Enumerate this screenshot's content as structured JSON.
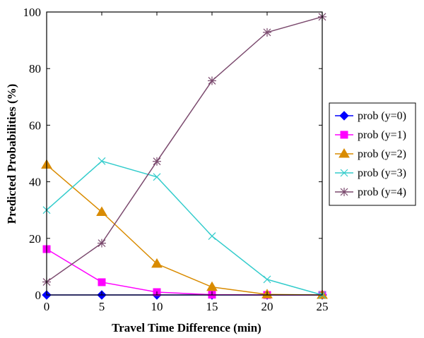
{
  "chart_data": {
    "type": "line",
    "title": "",
    "xlabel": "Travel Time Difference (min)",
    "ylabel": "Predicted Probabilities (%)",
    "x": [
      0,
      5,
      10,
      15,
      20,
      25
    ],
    "xlim": [
      0,
      25
    ],
    "ylim": [
      0,
      100
    ],
    "xticks": [
      "0",
      "5",
      "10",
      "15",
      "20",
      "25"
    ],
    "yticks": [
      "0",
      "20",
      "40",
      "60",
      "80",
      "100"
    ],
    "grid": false,
    "legend_position": "right",
    "series": [
      {
        "name": "prob (y=0)",
        "marker": "diamond",
        "color": "#0000ff",
        "values": [
          0,
          0,
          0,
          0,
          0,
          0
        ]
      },
      {
        "name": "prob (y=1)",
        "marker": "square",
        "color": "#ff00ff",
        "values": [
          16.2,
          4.5,
          1,
          0.1,
          0,
          0
        ]
      },
      {
        "name": "prob (y=2)",
        "marker": "triangle",
        "color": "#d98b00",
        "values": [
          46,
          29.3,
          11,
          2.8,
          0.2,
          0
        ]
      },
      {
        "name": "prob (y=3)",
        "marker": "x",
        "color": "#33cccc",
        "values": [
          30,
          47.3,
          41.7,
          20.8,
          5.5,
          0
        ]
      },
      {
        "name": "prob (y=4)",
        "marker": "star",
        "color": "#7b4a6e",
        "values": [
          4.6,
          18.3,
          47.2,
          75.7,
          92.8,
          98.3
        ]
      }
    ]
  }
}
